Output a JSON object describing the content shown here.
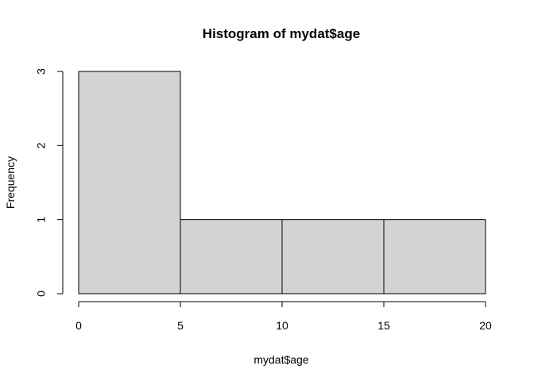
{
  "chart_data": {
    "type": "bar",
    "title": "Histogram of mydat$age",
    "xlabel": "mydat$age",
    "ylabel": "Frequency",
    "bins": [
      {
        "start": 0,
        "end": 5,
        "count": 3
      },
      {
        "start": 5,
        "end": 10,
        "count": 1
      },
      {
        "start": 10,
        "end": 15,
        "count": 1
      },
      {
        "start": 15,
        "end": 20,
        "count": 1
      }
    ],
    "xlim": [
      0,
      20
    ],
    "ylim": [
      0,
      3
    ],
    "xticks": [
      "0",
      "5",
      "10",
      "15",
      "20"
    ],
    "yticks": [
      "0",
      "1",
      "2",
      "3"
    ],
    "bar_color": "#d3d3d3",
    "grid": false,
    "legend": "none"
  }
}
